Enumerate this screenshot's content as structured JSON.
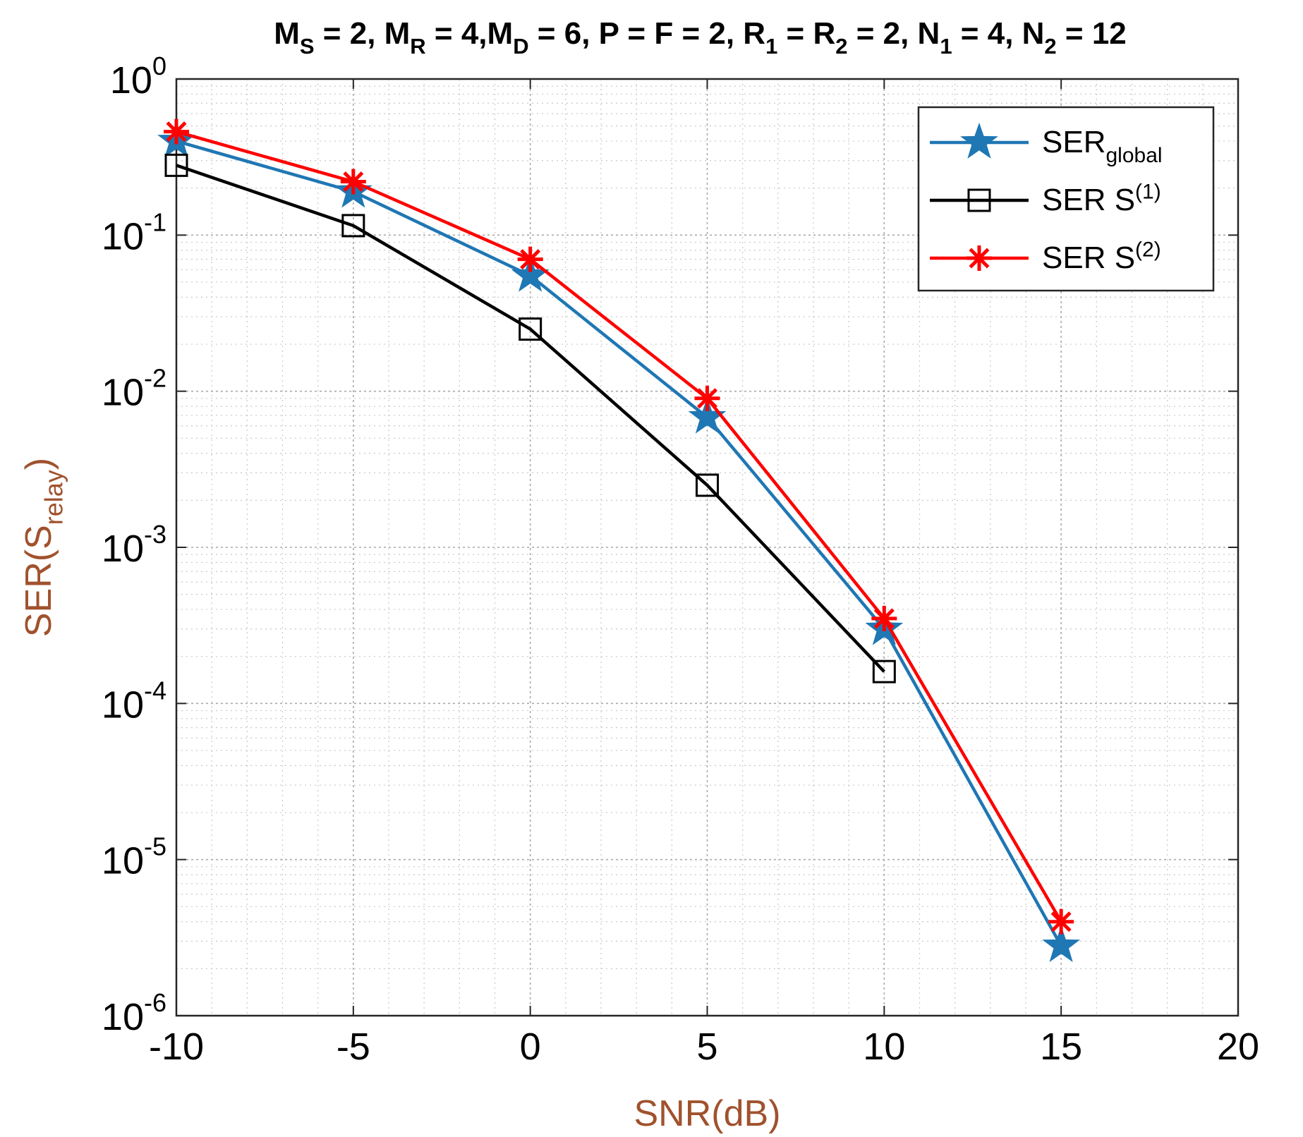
{
  "chart_data": {
    "type": "line",
    "title_parts": [
      {
        "t": "M"
      },
      {
        "t": "S",
        "sub": true
      },
      {
        "t": " = 2, M"
      },
      {
        "t": "R",
        "sub": true
      },
      {
        "t": " = 4,M"
      },
      {
        "t": "D",
        "sub": true
      },
      {
        "t": " = 6, P = F = 2, R"
      },
      {
        "t": "1",
        "sub": true
      },
      {
        "t": " = R"
      },
      {
        "t": "2",
        "sub": true
      },
      {
        "t": " = 2, N"
      },
      {
        "t": "1",
        "sub": true
      },
      {
        "t": " = 4, N"
      },
      {
        "t": "2",
        "sub": true
      },
      {
        "t": " = 12"
      }
    ],
    "xlabel": "SNR(dB)",
    "ylabel_parts": [
      {
        "t": "SER(S"
      },
      {
        "t": "relay",
        "sub": true
      },
      {
        "t": ")"
      }
    ],
    "yscale": "log",
    "xlim": [
      -10,
      20
    ],
    "ylim": [
      1e-06,
      1
    ],
    "xticks": [
      -10,
      -5,
      0,
      5,
      10,
      15,
      20
    ],
    "xtick_labels": [
      "-10",
      "-5",
      "0",
      "5",
      "10",
      "15",
      "20"
    ],
    "yticks": [
      {
        "value": 1,
        "base": "10",
        "exp": "0"
      },
      {
        "value": 0.1,
        "base": "10",
        "exp": "-1"
      },
      {
        "value": 0.01,
        "base": "10",
        "exp": "-2"
      },
      {
        "value": 0.001,
        "base": "10",
        "exp": "-3"
      },
      {
        "value": 0.0001,
        "base": "10",
        "exp": "-4"
      },
      {
        "value": 1e-05,
        "base": "10",
        "exp": "-5"
      },
      {
        "value": 1e-06,
        "base": "10",
        "exp": "-6"
      }
    ],
    "grid": true,
    "minor_grid": true,
    "legend_position": "top-right",
    "series": [
      {
        "name": "SER global",
        "legend_parts": [
          {
            "t": "SER"
          },
          {
            "t": "global",
            "sub": true
          }
        ],
        "color": "#1f77b4",
        "marker": "pentagram",
        "x": [
          -10,
          -5,
          0,
          5,
          10,
          15
        ],
        "y": [
          0.4,
          0.19,
          0.055,
          0.0068,
          0.0003,
          2.8e-06
        ]
      },
      {
        "name": "SER S(1)",
        "legend_parts": [
          {
            "t": "SER S"
          },
          {
            "t": "(1)",
            "sup": true
          }
        ],
        "color": "#000000",
        "marker": "square",
        "x": [
          -10,
          -5,
          0,
          5,
          10
        ],
        "y": [
          0.28,
          0.115,
          0.025,
          0.0025,
          0.00016
        ]
      },
      {
        "name": "SER S(2)",
        "legend_parts": [
          {
            "t": "SER S"
          },
          {
            "t": "(2)",
            "sup": true
          }
        ],
        "color": "#ff0000",
        "marker": "asterisk",
        "x": [
          -10,
          -5,
          0,
          5,
          10,
          15
        ],
        "y": [
          0.46,
          0.22,
          0.07,
          0.009,
          0.00035,
          4e-06
        ]
      }
    ]
  }
}
